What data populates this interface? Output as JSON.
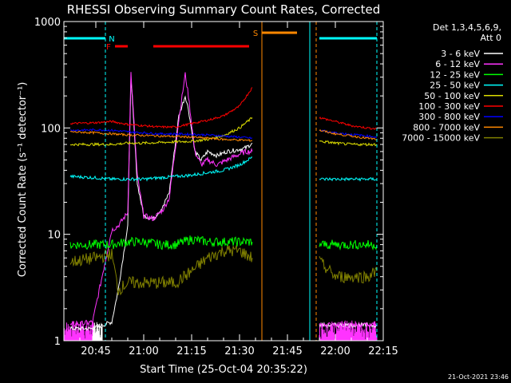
{
  "chart_data": {
    "type": "line",
    "title": "RHESSI Observing Summary Count Rates, Corrected",
    "xlabel": "Start Time (25-Oct-04 20:35:22)",
    "ylabel": "Corrected Count Rate (s⁻¹ detector⁻¹)",
    "y_scale": "log",
    "ylim": [
      1,
      1000
    ],
    "xlim": [
      "20:35",
      "22:15"
    ],
    "x_ticks": [
      "20:45",
      "21:00",
      "21:15",
      "21:30",
      "21:45",
      "22:00",
      "22:15"
    ],
    "y_ticks": [
      "1",
      "10",
      "100",
      "1000"
    ],
    "grid": false,
    "legend_position": "right",
    "detectors": "Det 1,3,4,5,6,9,",
    "attenuator": "Att 0",
    "timestamp": "21-Oct-2021 23:46",
    "series": [
      {
        "name": "3 - 6 keV",
        "color": "#ffffff",
        "x": [
          "20:37",
          "20:44",
          "20:50",
          "20:52",
          "20:55",
          "20:56",
          "20:58",
          "21:00",
          "21:03",
          "21:06",
          "21:08",
          "21:11",
          "21:13",
          "21:14",
          "21:16",
          "21:18",
          "21:20",
          "21:23",
          "21:26",
          "21:29",
          "21:32",
          "21:34"
        ],
        "y": [
          1.3,
          1.3,
          1.5,
          3,
          12,
          300,
          30,
          15,
          14,
          18,
          25,
          130,
          200,
          150,
          60,
          50,
          60,
          55,
          60,
          62,
          65,
          72
        ]
      },
      {
        "name": "6 - 12 keV",
        "color": "#ff33ff",
        "x": [
          "20:37",
          "20:44",
          "20:50",
          "20:52",
          "20:55",
          "20:56",
          "20:58",
          "21:00",
          "21:03",
          "21:06",
          "21:08",
          "21:11",
          "21:13",
          "21:14",
          "21:16",
          "21:18",
          "21:20",
          "21:23",
          "21:26",
          "21:29",
          "21:32",
          "21:34"
        ],
        "y": [
          1.4,
          1.5,
          11,
          12,
          16,
          330,
          35,
          15,
          14,
          17,
          22,
          120,
          320,
          200,
          60,
          45,
          50,
          45,
          50,
          55,
          60,
          60
        ]
      },
      {
        "name": "12 - 25 keV",
        "color": "#00ff00",
        "x": [
          "20:37",
          "20:45",
          "20:50",
          "20:55",
          "21:00",
          "21:05",
          "21:10",
          "21:15",
          "21:20",
          "21:25",
          "21:30",
          "21:34"
        ],
        "y": [
          8,
          8,
          8,
          8.5,
          8.5,
          8,
          8,
          9,
          8.5,
          8.5,
          8.5,
          8.5
        ]
      },
      {
        "name": "25 - 50 keV",
        "color": "#00ffff",
        "x": [
          "20:37",
          "20:45",
          "20:50",
          "20:55",
          "21:00",
          "21:05",
          "21:10",
          "21:15",
          "21:20",
          "21:25",
          "21:30",
          "21:34"
        ],
        "y": [
          35,
          34,
          33,
          33,
          33,
          34,
          35,
          36,
          38,
          40,
          45,
          53
        ]
      },
      {
        "name": "50 - 100 keV",
        "color": "#dddd00",
        "x": [
          "20:37",
          "20:45",
          "20:50",
          "20:55",
          "21:00",
          "21:05",
          "21:10",
          "21:15",
          "21:20",
          "21:25",
          "21:30",
          "21:34"
        ],
        "y": [
          70,
          70,
          70,
          72,
          72,
          73,
          74,
          75,
          78,
          85,
          100,
          125
        ]
      },
      {
        "name": "100 - 300 keV",
        "color": "#ff0000",
        "x": [
          "20:37",
          "20:45",
          "20:50",
          "20:55",
          "21:00",
          "21:05",
          "21:10",
          "21:15",
          "21:20",
          "21:25",
          "21:30",
          "21:34"
        ],
        "y": [
          110,
          112,
          115,
          108,
          105,
          102,
          102,
          110,
          118,
          130,
          160,
          240
        ]
      },
      {
        "name": "300 - 800 keV",
        "color": "#0000ff",
        "x": [
          "20:37",
          "20:45",
          "20:50",
          "20:55",
          "21:00",
          "21:05",
          "21:10",
          "21:15",
          "21:20",
          "21:25",
          "21:30",
          "21:34"
        ],
        "y": [
          95,
          96,
          95,
          92,
          90,
          88,
          88,
          87,
          86,
          84,
          82,
          80
        ]
      },
      {
        "name": "800 - 7000 keV",
        "color": "#ff8800",
        "x": [
          "20:37",
          "20:45",
          "20:50",
          "20:55",
          "21:00",
          "21:05",
          "21:10",
          "21:15",
          "21:20",
          "21:25",
          "21:30",
          "21:34"
        ],
        "y": [
          92,
          90,
          88,
          86,
          85,
          84,
          83,
          82,
          80,
          78,
          77,
          76
        ]
      },
      {
        "name": "7000 - 15000 keV",
        "color": "#808000",
        "x": [
          "20:37",
          "20:45",
          "20:50",
          "20:52",
          "20:55",
          "21:00",
          "21:05",
          "21:10",
          "21:15",
          "21:20",
          "21:25",
          "21:30",
          "21:34"
        ],
        "y": [
          5.5,
          6,
          6.5,
          3,
          3.5,
          3.5,
          3.5,
          3.5,
          4.5,
          6,
          7,
          7,
          6
        ]
      }
    ],
    "series_after_gap": [
      {
        "name": "3 - 6 keV",
        "x": [
          "21:55",
          "22:00",
          "22:05",
          "22:10",
          "22:13"
        ],
        "y": [
          1.4,
          1.4,
          1.4,
          1.4,
          1.4
        ]
      },
      {
        "name": "6 - 12 keV",
        "x": [
          "21:55",
          "22:00",
          "22:05",
          "22:10",
          "22:13"
        ],
        "y": [
          1.4,
          1.4,
          1.4,
          1.4,
          1.4
        ]
      },
      {
        "name": "12 - 25 keV",
        "x": [
          "21:55",
          "22:00",
          "22:05",
          "22:10",
          "22:13"
        ],
        "y": [
          8,
          8,
          8,
          8,
          8
        ]
      },
      {
        "name": "25 - 50 keV",
        "x": [
          "21:55",
          "22:00",
          "22:05",
          "22:10",
          "22:13"
        ],
        "y": [
          33,
          33,
          33,
          33,
          33
        ]
      },
      {
        "name": "50 - 100 keV",
        "x": [
          "21:55",
          "22:00",
          "22:05",
          "22:10",
          "22:13"
        ],
        "y": [
          75,
          72,
          70,
          70,
          70
        ]
      },
      {
        "name": "100 - 300 keV",
        "x": [
          "21:55",
          "22:00",
          "22:05",
          "22:10",
          "22:13"
        ],
        "y": [
          125,
          115,
          105,
          100,
          98
        ]
      },
      {
        "name": "300 - 800 keV",
        "x": [
          "21:55",
          "22:00",
          "22:05",
          "22:10",
          "22:13"
        ],
        "y": [
          95,
          90,
          87,
          84,
          82
        ]
      },
      {
        "name": "800 - 7000 keV",
        "x": [
          "21:55",
          "22:00",
          "22:05",
          "22:10",
          "22:13"
        ],
        "y": [
          95,
          88,
          84,
          80,
          78
        ]
      },
      {
        "name": "7000 - 15000 keV",
        "x": [
          "21:55",
          "22:00",
          "22:05",
          "22:10",
          "22:13"
        ],
        "y": [
          5.5,
          4,
          4,
          4,
          4.5
        ]
      }
    ],
    "flags": [
      {
        "label": "N",
        "color": "#00ffff",
        "intervals": [
          [
            "20:35",
            "20:48"
          ],
          [
            "21:55",
            "22:13"
          ]
        ]
      },
      {
        "label": "F",
        "color": "#ff0000",
        "intervals": [
          [
            "20:51",
            "20:55"
          ],
          [
            "21:03",
            "21:33"
          ]
        ]
      },
      {
        "label": "S",
        "color": "#ff8800",
        "intervals": [
          [
            "21:37",
            "21:48"
          ]
        ]
      }
    ],
    "vertical_markers": [
      {
        "x": "20:48",
        "color": "#00ffff",
        "style": "dashed"
      },
      {
        "x": "21:37",
        "color": "#ff8800",
        "style": "solid"
      },
      {
        "x": "21:52",
        "color": "#00ffff",
        "style": "solid"
      },
      {
        "x": "21:54",
        "color": "#ff8800",
        "style": "dashed"
      },
      {
        "x": "22:13",
        "color": "#00ffff",
        "style": "dashed"
      }
    ],
    "spikes": [
      {
        "name": "6 - 12 keV",
        "color": "#ff33ff",
        "x_range": [
          "20:35",
          "20:45"
        ]
      },
      {
        "name": "3 - 6 keV",
        "color": "#ffffff",
        "x_range": [
          "20:44",
          "20:47"
        ]
      },
      {
        "name": "6 - 12 keV",
        "color": "#ff33ff",
        "x_range": [
          "21:55",
          "22:13"
        ]
      }
    ]
  }
}
